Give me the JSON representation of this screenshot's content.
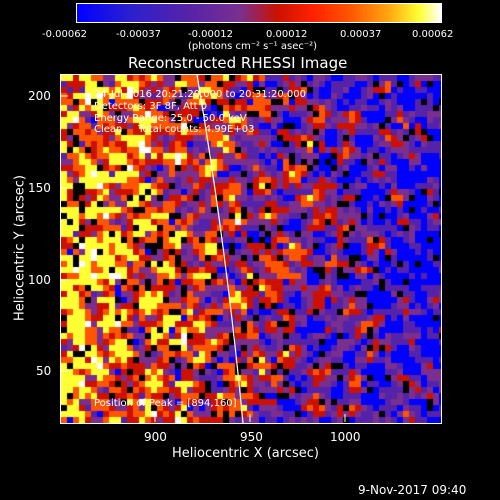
{
  "colorbar": {
    "ticks": [
      "-0.00062",
      "-0.00037",
      "-0.00012",
      "0.00012",
      "0.00037",
      "0.00062"
    ],
    "units": "(photons cm⁻² s⁻¹ asec⁻²)"
  },
  "title": "Reconstructed RHESSI Image",
  "info_lines": [
    "24-Jul-2016 20:21:20.000 to 20:31:20.000",
    "Detectors: 3F 8F, Att 0",
    "Energy Range: 25.0 - 50.0 keV",
    "Clean     Total counts: 4.99E+03"
  ],
  "peak_text": "Position of Peak = [894,160]",
  "axes": {
    "xlabel": "Heliocentric X (arcsec)",
    "ylabel": "Heliocentric Y (arcsec)",
    "xticks": [
      "900",
      "950",
      "1000"
    ],
    "yticks": [
      "200",
      "150",
      "100",
      "50"
    ]
  },
  "footer_timestamp": "9-Nov-2017 09:40",
  "colors": {
    "background": "#000000",
    "limb_line": "#ffffff",
    "colormap": [
      "#0000ff",
      "#5522aa",
      "#7a2f8f",
      "#cc1100",
      "#ff5500",
      "#ffff33",
      "#ffffff"
    ]
  }
}
